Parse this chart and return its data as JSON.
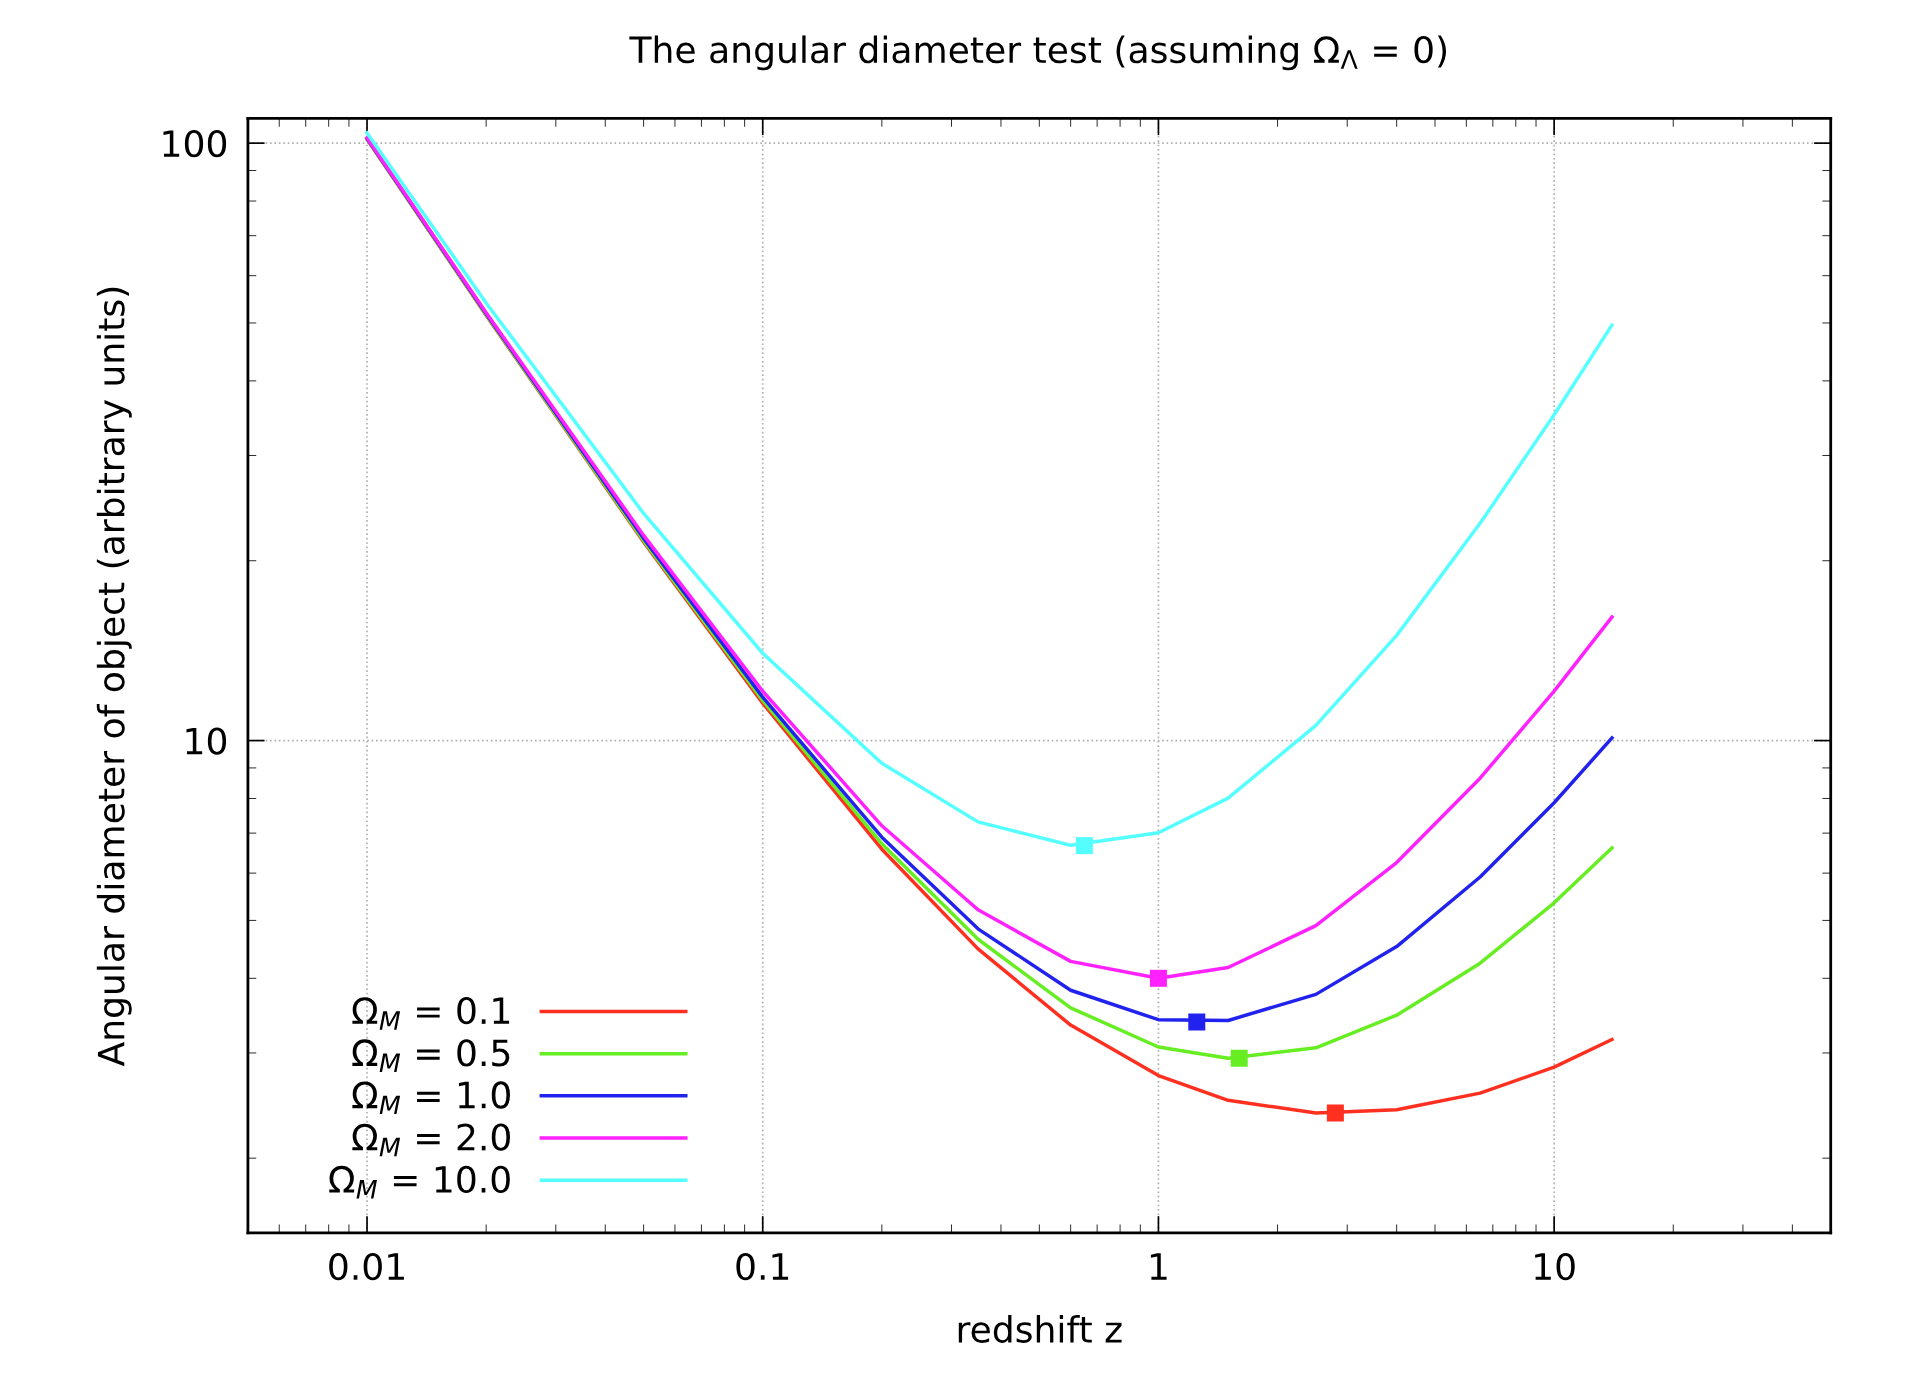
{
  "chart_data": {
    "type": "line",
    "title": "The angular diameter test (assuming Ω$_{Λ}$ = 0)",
    "xlabel": "redshift z",
    "ylabel": "Angular diameter of object (arbitrary units)",
    "x": [
      0.01,
      0.02,
      0.05,
      0.1,
      0.2,
      0.35,
      0.6,
      1,
      1.5,
      2.5,
      4,
      6.5,
      10,
      14
    ],
    "series": [
      {
        "name": "Ω$_{M}$ = 0.1",
        "color": "#ff3020",
        "values": [
          101.5,
          51.5,
          21.5,
          11.55,
          6.58,
          4.48,
          3.34,
          2.75,
          2.5,
          2.38,
          2.41,
          2.57,
          2.84,
          3.16
        ]
      },
      {
        "name": "Ω$_{M}$ = 0.5",
        "color": "#66ee22",
        "values": [
          101.6,
          51.6,
          21.6,
          11.67,
          6.72,
          4.65,
          3.57,
          3.07,
          2.94,
          3.06,
          3.47,
          4.24,
          5.35,
          6.61
        ]
      },
      {
        "name": "Ω$_{M}$ = 1.0",
        "color": "#2222ee",
        "values": [
          101.8,
          51.8,
          21.8,
          11.82,
          6.89,
          4.84,
          3.82,
          3.41,
          3.4,
          3.76,
          4.52,
          5.91,
          7.87,
          10.1
        ]
      },
      {
        "name": "Ω$_{M}$ = 2.0",
        "color": "#ff22ff",
        "values": [
          102,
          52,
          22.05,
          12.1,
          7.2,
          5.21,
          4.27,
          4.0,
          4.17,
          4.9,
          6.25,
          8.65,
          12.1,
          16.1
        ]
      },
      {
        "name": "Ω$_{M}$ = 10.0",
        "color": "#55ffff",
        "values": [
          104,
          54,
          24,
          14.0,
          9.16,
          7.31,
          6.68,
          7.01,
          8.01,
          10.6,
          15.0,
          23.1,
          35.1,
          49.6
        ]
      },
      {
        "type": "scatter",
        "marker": "square",
        "x": [
          2.8,
          1.6,
          1.25,
          1,
          0.65
        ],
        "values": [
          2.38,
          2.94,
          3.38,
          4.0,
          6.67
        ],
        "colors": [
          "#ff3020",
          "#66ee22",
          "#2222ee",
          "#ff22ff",
          "#55ffff"
        ]
      }
    ],
    "log": "xy",
    "xlim": [
      0.005,
      50
    ],
    "ylim": [
      1.5,
      110
    ],
    "xticks": [
      0.01,
      0.1,
      1,
      10
    ],
    "yticks": [
      10,
      100
    ],
    "grid": true,
    "legend": "bottom left"
  }
}
